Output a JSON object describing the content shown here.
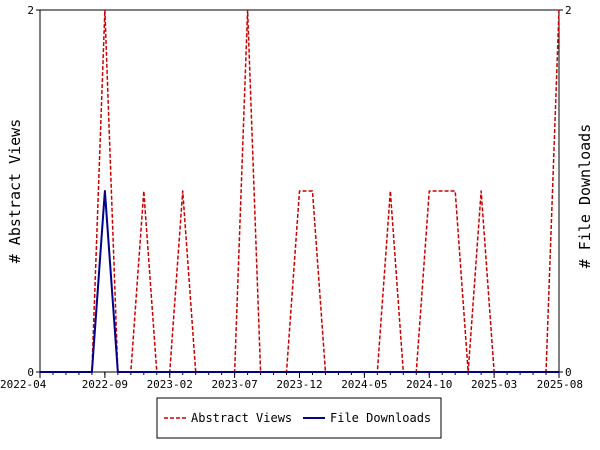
{
  "chart_data": {
    "type": "line",
    "title": "",
    "xlabel": "",
    "ylabel_left": "# Abstract Views",
    "ylabel_right": "# File Downloads",
    "x_tick_labels": [
      "2022-04",
      "2022-09",
      "2023-02",
      "2023-07",
      "2023-12",
      "2024-05",
      "2024-10",
      "2025-03",
      "2025-08"
    ],
    "y_left_ticks": [
      "0",
      "2"
    ],
    "y_right_ticks": [
      "0",
      "2"
    ],
    "ylim": [
      0,
      2
    ],
    "x_range": [
      "2022-04",
      "2025-08"
    ],
    "grid": false,
    "legend_position": "bottom",
    "series": [
      {
        "name": "Abstract Views",
        "color": "#cc0000",
        "style": "dashed",
        "axis": "left",
        "points": [
          [
            "2022-04",
            0
          ],
          [
            "2022-05",
            0
          ],
          [
            "2022-06",
            0
          ],
          [
            "2022-07",
            0
          ],
          [
            "2022-08",
            0
          ],
          [
            "2022-09",
            2
          ],
          [
            "2022-10",
            0
          ],
          [
            "2022-11",
            0
          ],
          [
            "2022-12",
            1
          ],
          [
            "2023-01",
            0
          ],
          [
            "2023-02",
            0
          ],
          [
            "2023-03",
            1
          ],
          [
            "2023-04",
            0
          ],
          [
            "2023-05",
            0
          ],
          [
            "2023-06",
            0
          ],
          [
            "2023-07",
            0
          ],
          [
            "2023-08",
            2
          ],
          [
            "2023-09",
            0
          ],
          [
            "2023-10",
            0
          ],
          [
            "2023-11",
            0
          ],
          [
            "2023-12",
            1
          ],
          [
            "2024-01",
            1
          ],
          [
            "2024-02",
            0
          ],
          [
            "2024-03",
            0
          ],
          [
            "2024-04",
            0
          ],
          [
            "2024-05",
            0
          ],
          [
            "2024-06",
            0
          ],
          [
            "2024-07",
            1
          ],
          [
            "2024-08",
            0
          ],
          [
            "2024-09",
            0
          ],
          [
            "2024-10",
            1
          ],
          [
            "2024-11",
            1
          ],
          [
            "2024-12",
            1
          ],
          [
            "2025-01",
            0
          ],
          [
            "2025-02",
            1
          ],
          [
            "2025-03",
            0
          ],
          [
            "2025-04",
            0
          ],
          [
            "2025-05",
            0
          ],
          [
            "2025-06",
            0
          ],
          [
            "2025-07",
            0
          ],
          [
            "2025-08",
            2
          ]
        ]
      },
      {
        "name": "File Downloads",
        "color": "#00008b",
        "style": "solid",
        "axis": "right",
        "points": [
          [
            "2022-04",
            0
          ],
          [
            "2022-05",
            0
          ],
          [
            "2022-06",
            0
          ],
          [
            "2022-07",
            0
          ],
          [
            "2022-08",
            0
          ],
          [
            "2022-09",
            1
          ],
          [
            "2022-10",
            0
          ],
          [
            "2022-11",
            0
          ],
          [
            "2022-12",
            0
          ],
          [
            "2023-01",
            0
          ],
          [
            "2023-02",
            0
          ],
          [
            "2023-03",
            0
          ],
          [
            "2023-04",
            0
          ],
          [
            "2023-05",
            0
          ],
          [
            "2023-06",
            0
          ],
          [
            "2023-07",
            0
          ],
          [
            "2023-08",
            0
          ],
          [
            "2023-09",
            0
          ],
          [
            "2023-10",
            0
          ],
          [
            "2023-11",
            0
          ],
          [
            "2023-12",
            0
          ],
          [
            "2024-01",
            0
          ],
          [
            "2024-02",
            0
          ],
          [
            "2024-03",
            0
          ],
          [
            "2024-04",
            0
          ],
          [
            "2024-05",
            0
          ],
          [
            "2024-06",
            0
          ],
          [
            "2024-07",
            0
          ],
          [
            "2024-08",
            0
          ],
          [
            "2024-09",
            0
          ],
          [
            "2024-10",
            0
          ],
          [
            "2024-11",
            0
          ],
          [
            "2024-12",
            0
          ],
          [
            "2025-01",
            0
          ],
          [
            "2025-02",
            0
          ],
          [
            "2025-03",
            0
          ],
          [
            "2025-04",
            0
          ],
          [
            "2025-05",
            0
          ],
          [
            "2025-06",
            0
          ],
          [
            "2025-07",
            0
          ],
          [
            "2025-08",
            0
          ]
        ]
      }
    ]
  }
}
